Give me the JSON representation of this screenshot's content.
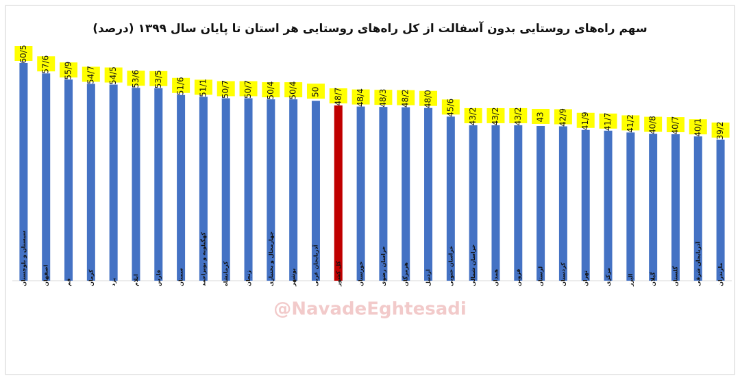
{
  "chart_data": {
    "type": "bar",
    "title": "سهم راه‌های روستایی بدون آسفالت از کل راه‌های روستایی هر استان تا پایان سال ۱۳۹۹ (درصد)",
    "watermark": "@NavadeEghtesadi",
    "categories": [
      "سیستان و بلوچستان",
      "اصفهان",
      "قم",
      "کرمان",
      "یزد",
      "ایلام",
      "فارس",
      "سمنان",
      "کهگیلویه و بویراحمد",
      "کرمانشاه",
      "زنجان",
      "چهارمحال و بختیاری",
      "بوشهر",
      "آذربایجان غربی",
      "کل کشور",
      "خوزستان",
      "خراسان رضوی",
      "هرمزگان",
      "اردبیل",
      "خراسان جنوبی",
      "خراسان شمالی",
      "همدان",
      "قزوین",
      "لرستان",
      "کردستان",
      "تهران",
      "مرکزی",
      "البرز",
      "گیلان",
      "گلستان",
      "آذربایجان شرقی",
      "مازندران"
    ],
    "values": [
      60.5,
      57.6,
      55.9,
      54.7,
      54.5,
      53.6,
      53.5,
      51.6,
      51.1,
      50.7,
      50.7,
      50.4,
      50.4,
      50,
      48.7,
      48.4,
      48.3,
      48.2,
      48.0,
      45.6,
      43.2,
      43.2,
      43.2,
      43,
      42.9,
      41.9,
      41.7,
      41.2,
      40.8,
      40.7,
      40.1,
      39.2
    ],
    "value_labels": [
      "60/5",
      "57/6",
      "55/9",
      "54/7",
      "54/5",
      "53/6",
      "53/5",
      "51/6",
      "51/1",
      "50/7",
      "50/7",
      "50/4",
      "50/4",
      "50",
      "48/7",
      "48/4",
      "48/3",
      "48/2",
      "48/0",
      "45/6",
      "43/2",
      "43/2",
      "43/2",
      "43",
      "42/9",
      "41/9",
      "41/7",
      "41/2",
      "40/8",
      "40/7",
      "40/1",
      "39/2"
    ],
    "colors": [
      "#4472c4",
      "#4472c4",
      "#4472c4",
      "#4472c4",
      "#4472c4",
      "#4472c4",
      "#4472c4",
      "#4472c4",
      "#4472c4",
      "#4472c4",
      "#4472c4",
      "#4472c4",
      "#4472c4",
      "#4472c4",
      "#c00000",
      "#4472c4",
      "#4472c4",
      "#4472c4",
      "#4472c4",
      "#4472c4",
      "#4472c4",
      "#4472c4",
      "#4472c4",
      "#4472c4",
      "#4472c4",
      "#4472c4",
      "#4472c4",
      "#4472c4",
      "#4472c4",
      "#4472c4",
      "#4472c4",
      "#4472c4"
    ],
    "label_box_color": "#ffff00"
  }
}
